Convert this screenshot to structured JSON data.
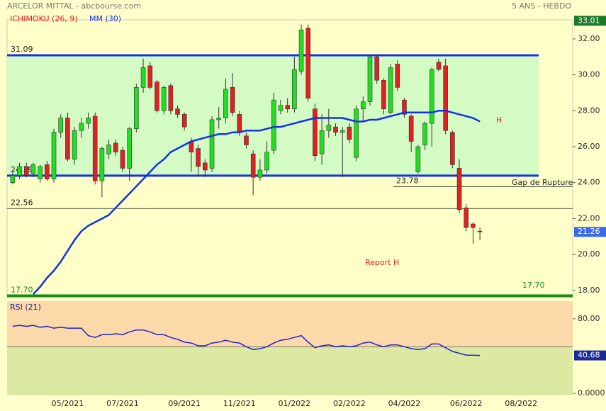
{
  "header": {
    "title": "ARCELOR MITTAL - abcbourse.com",
    "period": "5 ANS - HEBDO"
  },
  "chart_data": [
    {
      "type": "candlestick",
      "studies": [
        {
          "name": "ICHIMOKU (26, 9)",
          "color": "#e8141c"
        }
      ],
      "categories": [
        null,
        null,
        null,
        null,
        null,
        null,
        null,
        null,
        "05/2021",
        null,
        null,
        null,
        null,
        null,
        null,
        null,
        "07/2021",
        null,
        null,
        null,
        null,
        null,
        null,
        null,
        null,
        "09/2021",
        null,
        null,
        null,
        null,
        null,
        null,
        null,
        "11/2021",
        null,
        null,
        null,
        null,
        null,
        null,
        null,
        "01/2022",
        null,
        null,
        null,
        null,
        null,
        null,
        null,
        "02/2022",
        null,
        null,
        null,
        null,
        null,
        null,
        null,
        "04/2022",
        null,
        null,
        null,
        null,
        null,
        null,
        null,
        null,
        "06/2022",
        null,
        null,
        null,
        null,
        null,
        null,
        null,
        "08/2022",
        null,
        null,
        null,
        null,
        null,
        null,
        null
      ],
      "open": [
        24.0,
        24.4,
        24.9,
        24.5,
        24.2,
        25.0,
        24.2,
        26.8,
        27.6,
        25.3,
        26.9,
        27.3,
        27.7,
        24.1,
        25.6,
        26.2,
        25.8,
        24.8,
        27.0,
        29.3,
        30.5,
        29.6,
        28.0,
        29.4,
        28.1,
        27.8,
        26.3,
        25.9,
        25.1,
        24.8,
        27.5,
        27.6,
        29.3,
        27.8,
        26.6,
        25.6,
        24.3,
        24.7,
        25.8,
        28.0,
        28.3,
        28.1,
        30.2,
        32.6,
        28.1,
        25.6,
        26.9,
        27.1,
        26.8,
        27.1,
        25.4,
        28.1,
        28.5,
        31.0,
        29.7,
        27.9,
        30.6,
        28.6,
        27.7,
        24.6,
        26.1,
        27.3,
        30.7,
        30.5,
        26.8,
        24.8,
        22.6,
        21.7,
        21.3,
        null,
        null,
        null,
        null,
        null,
        null,
        null,
        null,
        null,
        null,
        null,
        null,
        null
      ],
      "high": [
        24.6,
        25.1,
        25.1,
        25.1,
        25.0,
        25.2,
        27.0,
        27.8,
        27.9,
        27.1,
        27.6,
        27.9,
        27.9,
        26.0,
        26.4,
        26.4,
        26.0,
        27.1,
        29.5,
        30.9,
        30.7,
        29.7,
        29.4,
        29.5,
        28.3,
        27.9,
        26.5,
        26.1,
        25.3,
        27.7,
        28.2,
        29.8,
        30.1,
        28.0,
        26.8,
        25.8,
        25.3,
        26.3,
        29.0,
        28.6,
        28.7,
        31.0,
        32.8,
        32.8,
        28.4,
        27.8,
        28.1,
        27.3,
        27.1,
        27.3,
        28.3,
        28.8,
        31.1,
        31.1,
        29.8,
        30.6,
        30.8,
        28.7,
        27.8,
        26.1,
        27.4,
        30.4,
        30.9,
        30.9,
        26.9,
        25.3,
        22.8,
        21.8,
        21.5,
        null,
        null,
        null,
        null,
        null,
        null,
        null,
        null,
        null,
        null,
        null,
        null,
        null
      ],
      "low": [
        23.9,
        24.2,
        24.3,
        24.3,
        24.0,
        24.1,
        24.0,
        26.5,
        25.2,
        25.0,
        26.5,
        27.0,
        23.9,
        23.2,
        25.3,
        25.5,
        24.6,
        24.1,
        26.8,
        29.0,
        29.2,
        27.9,
        27.8,
        27.8,
        27.6,
        26.9,
        24.6,
        24.4,
        24.3,
        24.6,
        27.0,
        27.3,
        27.7,
        26.6,
        25.9,
        23.3,
        24.1,
        24.5,
        25.6,
        27.8,
        27.9,
        27.9,
        30.0,
        28.5,
        25.2,
        25.0,
        26.5,
        26.6,
        24.3,
        26.2,
        25.2,
        27.4,
        28.3,
        29.5,
        27.8,
        27.8,
        29.1,
        27.6,
        25.7,
        24.5,
        25.8,
        26.0,
        30.2,
        26.7,
        24.8,
        22.3,
        21.3,
        20.6,
        20.8,
        null,
        null,
        null,
        null,
        null,
        null,
        null,
        null,
        null,
        null,
        null,
        null,
        null
      ],
      "close": [
        24.4,
        24.9,
        24.4,
        25.0,
        24.9,
        24.2,
        26.8,
        27.6,
        25.3,
        26.9,
        27.3,
        27.6,
        24.1,
        25.9,
        26.1,
        25.7,
        24.8,
        27.0,
        29.3,
        30.4,
        29.3,
        28.0,
        29.3,
        28.0,
        27.8,
        27.1,
        25.7,
        24.9,
        24.7,
        27.5,
        27.6,
        29.2,
        27.9,
        26.8,
        26.1,
        24.3,
        24.7,
        25.7,
        28.6,
        28.3,
        28.1,
        30.3,
        32.5,
        28.7,
        25.5,
        26.9,
        27.2,
        26.8,
        26.9,
        26.4,
        28.1,
        28.5,
        31.0,
        29.7,
        28.1,
        30.4,
        29.3,
        27.8,
        26.3,
        26.0,
        27.3,
        30.3,
        30.3,
        26.9,
        25.0,
        22.5,
        21.5,
        21.5,
        21.26,
        null,
        null,
        null,
        null,
        null,
        null,
        null,
        null,
        null,
        null,
        null,
        null,
        null
      ],
      "up_color": "#22dd22",
      "down_color": "#dd2222",
      "series": [
        {
          "name": "MM (30)",
          "color": "#1432e6",
          "values": [
            null,
            null,
            null,
            17.8,
            18.2,
            18.7,
            19.1,
            19.6,
            20.2,
            20.8,
            21.3,
            21.6,
            21.8,
            22.0,
            22.2,
            22.6,
            23.0,
            23.4,
            23.8,
            24.2,
            24.6,
            25.0,
            25.3,
            25.7,
            25.9,
            26.1,
            26.3,
            26.4,
            26.5,
            26.6,
            26.7,
            26.7,
            26.8,
            26.8,
            26.9,
            26.9,
            26.9,
            27.0,
            27.1,
            27.1,
            27.2,
            27.3,
            27.4,
            27.5,
            27.6,
            27.6,
            27.6,
            27.6,
            27.6,
            27.5,
            27.4,
            27.4,
            27.5,
            27.5,
            27.6,
            27.7,
            27.8,
            27.9,
            27.9,
            27.9,
            27.9,
            27.9,
            28.0,
            28.0,
            27.9,
            27.8,
            27.7,
            27.6,
            27.4,
            null,
            null,
            null,
            null,
            null,
            null,
            null,
            null,
            null,
            null,
            null,
            null,
            null
          ]
        }
      ],
      "ylim": [
        17.68,
        33.06
      ],
      "yticks": [
        {
          "value": 32,
          "label": "32.00"
        },
        {
          "value": 30,
          "label": "30.00"
        },
        {
          "value": 28,
          "label": "28.00"
        },
        {
          "value": 26,
          "label": "26.00"
        },
        {
          "value": 24,
          "label": "24.00"
        },
        {
          "value": 22,
          "label": "22.00"
        },
        {
          "value": 20,
          "label": "20.00"
        },
        {
          "value": 18,
          "label": "18.00"
        }
      ],
      "levels": [
        {
          "value": 31.09,
          "color": "#1432e6"
        },
        {
          "value": 24.39,
          "color": "#1432e6"
        },
        {
          "value": 22.56,
          "color": "#222222"
        },
        {
          "value": 23.78,
          "color": "#222222"
        },
        {
          "value": 17.7,
          "label": "17.70",
          "color": "#1a8a1a"
        }
      ],
      "range_color": "#d4fbc4",
      "price_tags": [
        {
          "value": 33.01,
          "color": "#1a7a2a"
        },
        {
          "value": 21.26,
          "color": "#3a6af0"
        }
      ],
      "annotations": [
        {
          "text": "H",
          "color": "#e0201c"
        },
        {
          "text": "Report H",
          "color": "#e0201c"
        },
        {
          "text": "17.70",
          "color": "#1a8a1a"
        },
        {
          "text": "Gap de Rupture",
          "color": "#222222"
        }
      ]
    },
    {
      "type": "line",
      "title": "RSI (21)",
      "series": [
        {
          "name": "RSI (21)",
          "color": "#2222cc",
          "values": [
            72,
            73,
            72,
            73,
            71,
            72,
            70,
            71,
            70,
            70,
            70,
            62,
            60,
            63,
            63,
            64,
            63,
            66,
            68,
            68,
            66,
            63,
            63,
            60,
            58,
            55,
            54,
            51,
            51,
            54,
            55,
            57,
            55,
            54,
            50,
            47,
            48,
            50,
            54,
            57,
            58,
            60,
            62,
            55,
            49,
            51,
            52,
            50,
            51,
            50,
            51,
            54,
            55,
            52,
            50,
            52,
            52,
            50,
            48,
            47,
            48,
            53,
            53,
            49,
            45,
            43,
            41,
            41,
            40.68,
            null,
            null,
            null,
            null,
            null,
            null,
            null,
            null,
            null,
            null,
            null,
            null,
            null
          ]
        }
      ],
      "ylim": [
        0,
        99
      ],
      "yticks": [
        {
          "value": 80,
          "label": "80.00"
        },
        {
          "value": 0,
          "label": "0.0000"
        }
      ],
      "zone_level": 50,
      "upper_zone_color": "#fcd9a8",
      "lower_zone_color": "#dce9a2",
      "price_tags": [
        {
          "value": 40.68,
          "color": "#1a2a9a"
        }
      ]
    }
  ]
}
